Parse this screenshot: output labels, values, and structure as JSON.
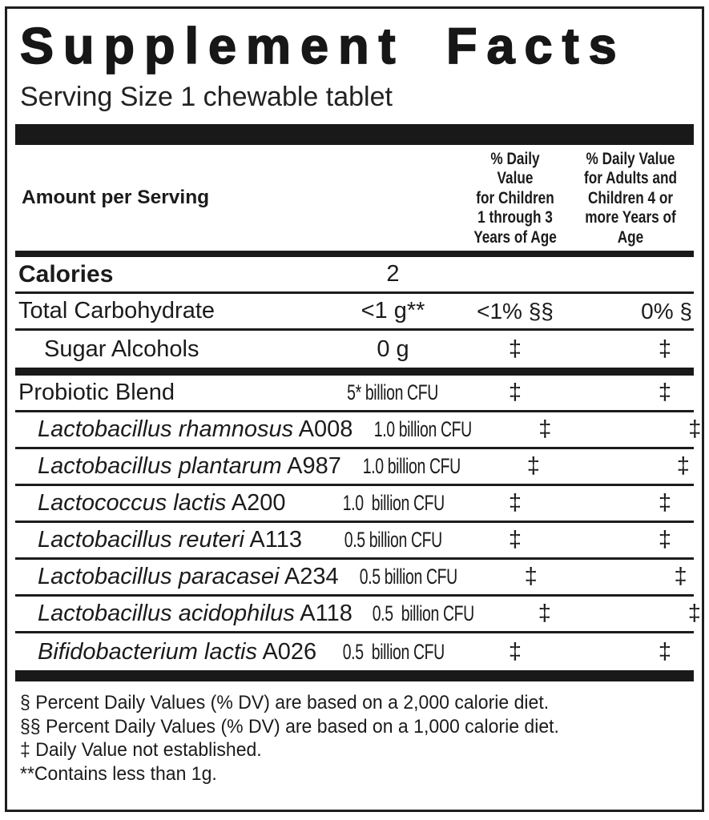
{
  "label": {
    "title": "Supplement Facts",
    "serving_size": "Serving Size 1 chewable tablet",
    "columns": {
      "amount_header": "Amount per Serving",
      "children_header": "% Daily Value\nfor Children\n1 through 3\nYears of Age",
      "adults_header": "% Daily Value\nfor Adults and\nChildren 4 or\nmore Years of Age"
    },
    "nutrient_rows": [
      {
        "name": "Calories",
        "bold": true,
        "amount": "2",
        "children_dv": "",
        "adults_dv": ""
      },
      {
        "name": "Total Carbohydrate",
        "amount": "<1 g**",
        "children_dv": "<1% §§",
        "adults_dv": "0% §"
      },
      {
        "name": "Sugar Alcohols",
        "indent": 1,
        "amount": "0 g",
        "children_dv": "‡",
        "adults_dv": "‡"
      }
    ],
    "probiotic_rows": [
      {
        "name": "Probiotic Blend",
        "amount": "5* billion CFU",
        "children_dv": "‡",
        "adults_dv": "‡"
      },
      {
        "name": "Lactobacillus rhamnosus",
        "code": "A008",
        "italic": true,
        "indent": 2,
        "amount": "1.0 billion CFU",
        "children_dv": "‡",
        "adults_dv": "‡"
      },
      {
        "name": "Lactobacillus plantarum",
        "code": "A987",
        "italic": true,
        "indent": 2,
        "amount": "1.0 billion CFU",
        "children_dv": "‡",
        "adults_dv": "‡"
      },
      {
        "name": "Lactococcus lactis",
        "code": "A200",
        "italic": true,
        "indent": 2,
        "amount": "1.0  billion CFU",
        "children_dv": "‡",
        "adults_dv": "‡"
      },
      {
        "name": "Lactobacillus reuteri",
        "code": "A113",
        "italic": true,
        "indent": 2,
        "amount": "0.5 billion CFU",
        "children_dv": "‡",
        "adults_dv": "‡"
      },
      {
        "name": "Lactobacillus paracasei",
        "code": "A234",
        "italic": true,
        "indent": 2,
        "amount": "0.5 billion CFU",
        "children_dv": "‡",
        "adults_dv": "‡"
      },
      {
        "name": "Lactobacillus acidophilus",
        "code": "A118",
        "italic": true,
        "indent": 2,
        "amount": "0.5  billion CFU",
        "children_dv": "‡",
        "adults_dv": "‡"
      },
      {
        "name": "Bifidobacterium lactis",
        "code": "A026",
        "italic": true,
        "indent": 2,
        "amount": "0.5  billion CFU",
        "children_dv": "‡",
        "adults_dv": "‡"
      }
    ],
    "footnotes": [
      "§ Percent Daily Values (% DV) are based on a 2,000 calorie diet.",
      "§§ Percent Daily Values (% DV) are based on a 1,000 calorie diet.",
      "‡ Daily Value not established.",
      "**Contains less than 1g."
    ],
    "colors": {
      "ink": "#191919",
      "background": "#ffffff"
    }
  }
}
